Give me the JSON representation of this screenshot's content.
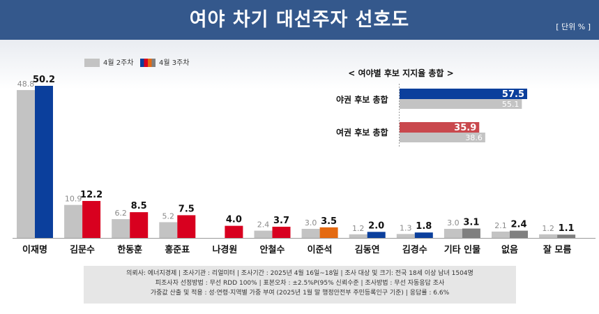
{
  "header": {
    "title": "여야 차기 대선주자 선호도",
    "unit": "[ 단위 % ]"
  },
  "legend": {
    "prev": "4월 2주차",
    "curr": "4월 3주차"
  },
  "colors": {
    "prev": "#c3c3c3",
    "curr_default": "#d8001f",
    "header": "#34588c"
  },
  "chart_data": [
    {
      "type": "bar",
      "title": "여야 차기 대선주자 선호도",
      "unit": "%",
      "categories": [
        "이재명",
        "김문수",
        "한동훈",
        "홍준표",
        "나경원",
        "안철수",
        "이준석",
        "김동연",
        "김경수",
        "기타 인물",
        "없음",
        "잘 모름"
      ],
      "series": [
        {
          "name": "4월 2주차",
          "values": [
            48.8,
            10.9,
            6.2,
            5.2,
            null,
            2.4,
            3.0,
            1.2,
            1.3,
            3.0,
            2.1,
            1.2
          ]
        },
        {
          "name": "4월 3주차",
          "values": [
            50.2,
            12.2,
            8.5,
            7.5,
            4.0,
            3.7,
            3.5,
            2.0,
            1.8,
            3.1,
            2.4,
            1.1
          ]
        }
      ],
      "curr_colors": [
        "#0b3f9c",
        "#d8001f",
        "#d8001f",
        "#d8001f",
        "#d8001f",
        "#d8001f",
        "#e46a12",
        "#0b3f9c",
        "#0b3f9c",
        "#7f7f7f",
        "#7f7f7f",
        "#7f7f7f"
      ],
      "ylim": [
        0,
        52
      ]
    },
    {
      "type": "bar",
      "orientation": "horizontal",
      "title": "< 여야별 후보 지지율 총합 >",
      "categories": [
        "야권 후보 총합",
        "여권 후보 총합"
      ],
      "series": [
        {
          "name": "4월 3주차",
          "values": [
            57.5,
            35.9
          ]
        },
        {
          "name": "4월 2주차",
          "values": [
            55.1,
            38.6
          ]
        }
      ],
      "curr_colors": [
        "#0b3f9c",
        "#c9484d"
      ],
      "xlim": [
        0,
        57.5
      ]
    }
  ],
  "footer": {
    "line1": "의뢰사: 에너지경제 | 조사기관 : 리얼미터  |  조사기간 : 2025년 4월 16일~18일 | 조사 대상 및 크기: 전국 18세 이상 남녀 1504명",
    "line2": "피조사자 선정방법 : 무선 RDD 100% | 표본오차 : ±2.5%P(95% 신뢰수준 | 조사방법 : 무선 자동응답 조사",
    "line3": "가중값 산출 및 적용 : 성·연령·지역별 가중 부여 (2025년 1월 말 행정안전부 주민등록인구 기준) | 응답률 : 6.6%"
  }
}
